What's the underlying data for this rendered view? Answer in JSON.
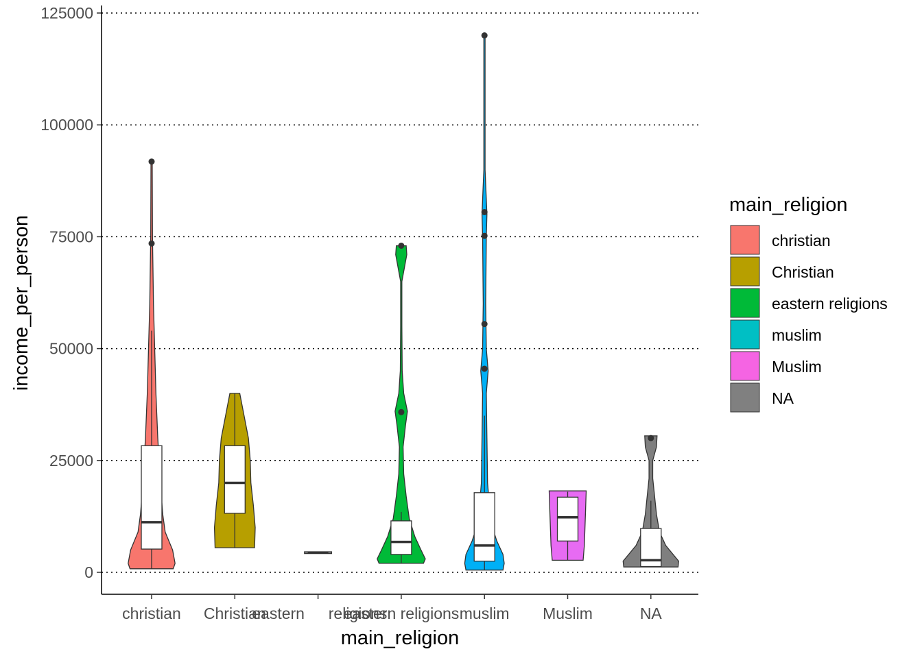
{
  "chart_data": {
    "type": "violin",
    "xlabel": "main_religion",
    "ylabel": "income_per_person",
    "ylim": [
      -5000,
      127000
    ],
    "yticks": [
      0,
      25000,
      50000,
      75000,
      100000,
      125000
    ],
    "ytick_labels": [
      "0",
      "25000",
      "50000",
      "75000",
      "100000",
      "125000"
    ],
    "grid": "horizontal dotted",
    "legend": {
      "title": "main_religion",
      "placement": "right",
      "entries": [
        {
          "label": "christian",
          "color": "#F8766D"
        },
        {
          "label": "Christian",
          "color": "#B79F00"
        },
        {
          "label": "eastern religions",
          "color": "#00BA38"
        },
        {
          "label": "muslim",
          "color": "#00BFC4"
        },
        {
          "label": "Muslim",
          "color": "#F564E3"
        },
        {
          "label": "NA",
          "color": "#808080"
        }
      ]
    },
    "groups": [
      {
        "label": "christian",
        "tick_label": "christian",
        "color": "#F8766D",
        "box": {
          "min": 800,
          "q1": 5200,
          "median": 11200,
          "q3": 28300,
          "max": 54000
        },
        "outliers": [
          73500,
          91800
        ],
        "violin": [
          [
            800,
            0.35
          ],
          [
            2000,
            0.38
          ],
          [
            5000,
            0.34
          ],
          [
            9000,
            0.22
          ],
          [
            13000,
            0.18
          ],
          [
            20000,
            0.14
          ],
          [
            30000,
            0.1
          ],
          [
            40000,
            0.07
          ],
          [
            50000,
            0.05
          ],
          [
            60000,
            0.03
          ],
          [
            75000,
            0.015
          ],
          [
            92000,
            0.01
          ]
        ]
      },
      {
        "label": "Christian",
        "tick_label": "Christian",
        "color": "#B79F00",
        "box": {
          "min": 5500,
          "q1": 13200,
          "median": 20000,
          "q3": 28300,
          "max": 40000
        },
        "outliers": [],
        "violin": [
          [
            5500,
            0.32
          ],
          [
            10000,
            0.33
          ],
          [
            15000,
            0.3
          ],
          [
            20000,
            0.26
          ],
          [
            25000,
            0.25
          ],
          [
            30000,
            0.22
          ],
          [
            35000,
            0.15
          ],
          [
            40000,
            0.08
          ]
        ]
      },
      {
        "label": "eastern religions",
        "tick_label": "eastern religions",
        "tick_label_parts": [
          "eastern",
          "religions"
        ],
        "color": "#808080",
        "box": {
          "min": 4400,
          "q1": 4400,
          "median": 4400,
          "q3": 4400,
          "max": 4400
        },
        "outliers": [],
        "violin": [
          [
            4200,
            0.22
          ],
          [
            4400,
            0.22
          ],
          [
            4600,
            0.22
          ]
        ]
      },
      {
        "label": "eastern religions",
        "tick_label": "eastern religions",
        "color": "#00BA38",
        "box": {
          "min": 2000,
          "q1": 4000,
          "median": 6800,
          "q3": 11500,
          "max": 13500
        },
        "outliers": [
          35800,
          73000
        ],
        "violin": [
          [
            2000,
            0.36
          ],
          [
            3000,
            0.39
          ],
          [
            5000,
            0.32
          ],
          [
            8000,
            0.22
          ],
          [
            12000,
            0.13
          ],
          [
            17000,
            0.08
          ],
          [
            22000,
            0.04
          ],
          [
            28000,
            0.03
          ],
          [
            33000,
            0.07
          ],
          [
            36000,
            0.1
          ],
          [
            40000,
            0.04
          ],
          [
            45000,
            0.015
          ],
          [
            55000,
            0.01
          ],
          [
            65000,
            0.01
          ],
          [
            68000,
            0.05
          ],
          [
            71000,
            0.09
          ],
          [
            73000,
            0.08
          ]
        ]
      },
      {
        "label": "muslim",
        "tick_label": "muslim",
        "color": "#00B0F6",
        "box": {
          "min": 500,
          "q1": 2500,
          "median": 6000,
          "q3": 17800,
          "max": 35000
        },
        "outliers": [
          45500,
          55500,
          75200,
          80500,
          120000
        ],
        "violin": [
          [
            500,
            0.3
          ],
          [
            2000,
            0.32
          ],
          [
            4000,
            0.3
          ],
          [
            7000,
            0.2
          ],
          [
            10000,
            0.13
          ],
          [
            15000,
            0.08
          ],
          [
            20000,
            0.05
          ],
          [
            30000,
            0.04
          ],
          [
            40000,
            0.03
          ],
          [
            45000,
            0.06
          ],
          [
            50000,
            0.03
          ],
          [
            60000,
            0.02
          ],
          [
            75000,
            0.03
          ],
          [
            80000,
            0.04
          ],
          [
            90000,
            0.01
          ],
          [
            100000,
            0.01
          ],
          [
            110000,
            0.01
          ],
          [
            120000,
            0.01
          ]
        ]
      },
      {
        "label": "Muslim",
        "tick_label": "Muslim",
        "color": "#E76BF3",
        "box": {
          "min": 2700,
          "q1": 7000,
          "median": 12300,
          "q3": 16800,
          "max": 18000
        },
        "outliers": [],
        "violin": [
          [
            2700,
            0.25
          ],
          [
            6000,
            0.27
          ],
          [
            10000,
            0.28
          ],
          [
            14000,
            0.29
          ],
          [
            18200,
            0.3
          ]
        ]
      },
      {
        "label": "NA",
        "tick_label": "NA",
        "color": "#7F7F7F",
        "box": {
          "min": 1200,
          "q1": 1300,
          "median": 2700,
          "q3": 9800,
          "max": 16000
        },
        "outliers": [
          30000
        ],
        "violin": [
          [
            1200,
            0.44
          ],
          [
            2500,
            0.45
          ],
          [
            4000,
            0.36
          ],
          [
            6000,
            0.24
          ],
          [
            9000,
            0.14
          ],
          [
            13000,
            0.09
          ],
          [
            17000,
            0.06
          ],
          [
            21000,
            0.03
          ],
          [
            25000,
            0.03
          ],
          [
            28000,
            0.09
          ],
          [
            30500,
            0.1
          ]
        ]
      }
    ]
  }
}
